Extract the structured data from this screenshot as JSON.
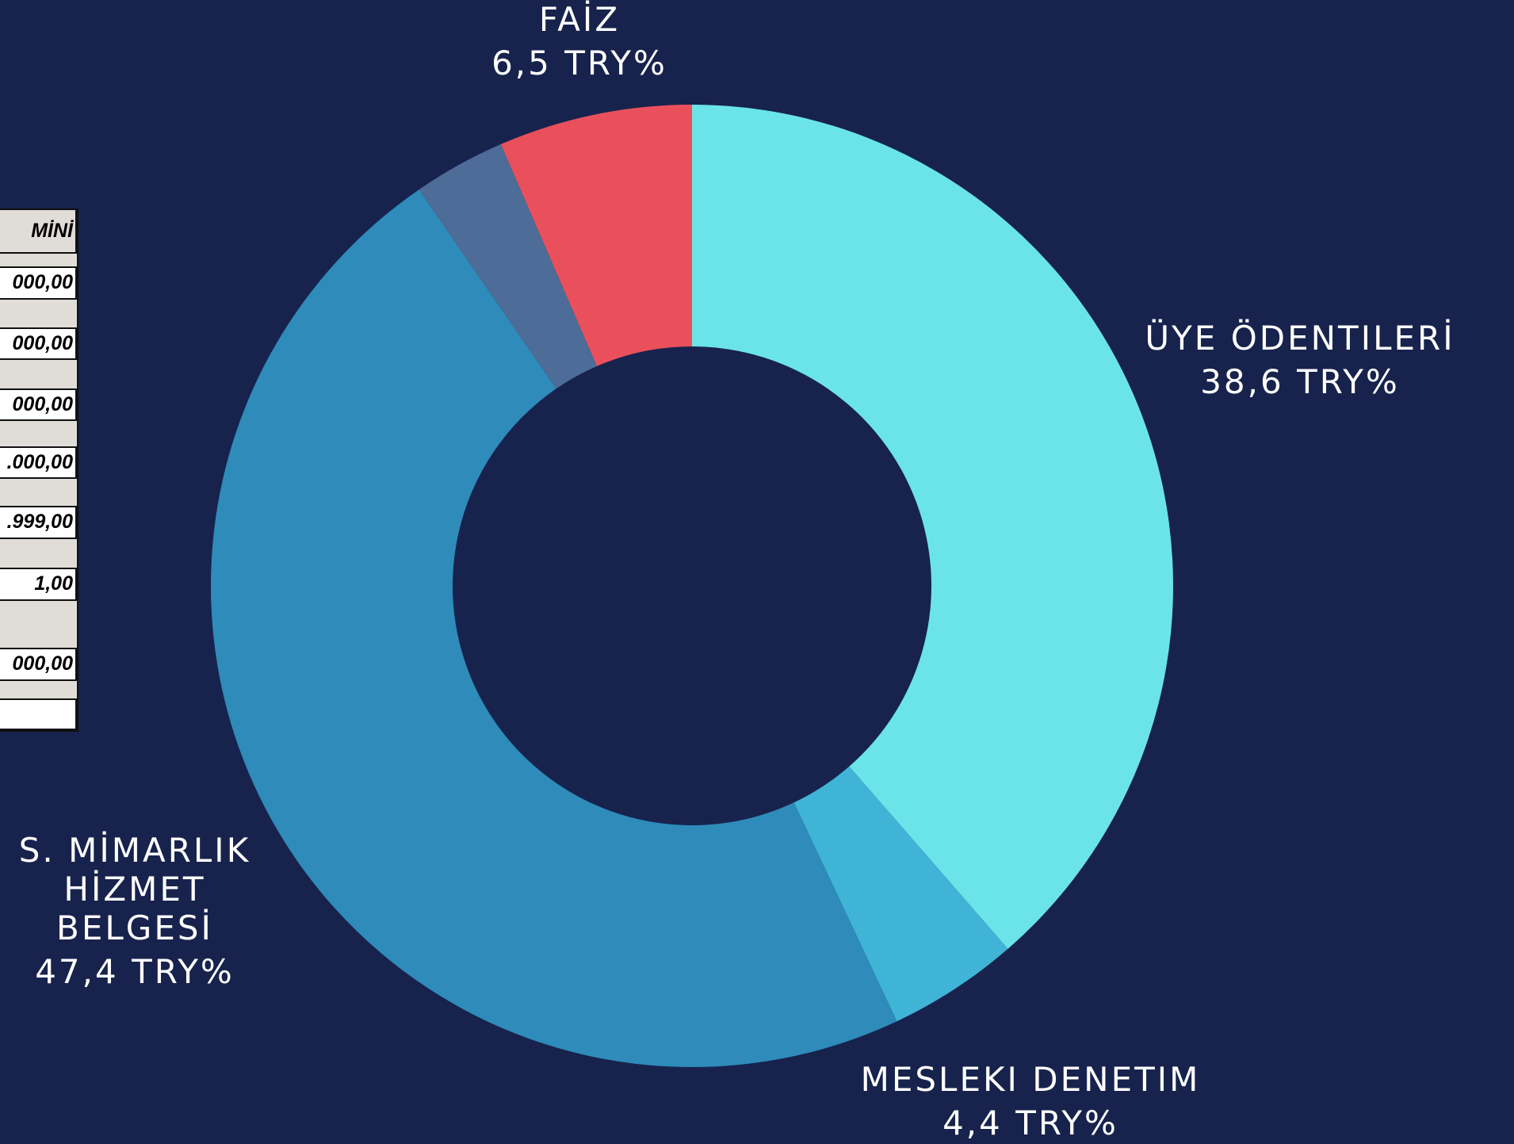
{
  "chart_data": {
    "type": "donut",
    "categories": [
      "ÜYE ÖDENTILERİ",
      "MESLEKI DENETIM",
      "S. MİMARLIK HİZMET BELGESİ",
      null,
      "FAİZ"
    ],
    "values": [
      38.6,
      4.4,
      47.4,
      3.1,
      6.5
    ],
    "value_labels": [
      "38,6 TRY%",
      "4,4 TRY%",
      "47,4 TRY%",
      null,
      "6,5 TRY%"
    ],
    "colors": [
      "#6be4e9",
      "#3fb4d6",
      "#2e8bba",
      "#4d6c97",
      "#ea505b"
    ]
  },
  "inset_table": {
    "header": "MİNİ",
    "cells": [
      "000,00",
      "000,00",
      "000,00",
      ".000,00",
      ".999,00",
      "1,00",
      "000,00"
    ]
  }
}
